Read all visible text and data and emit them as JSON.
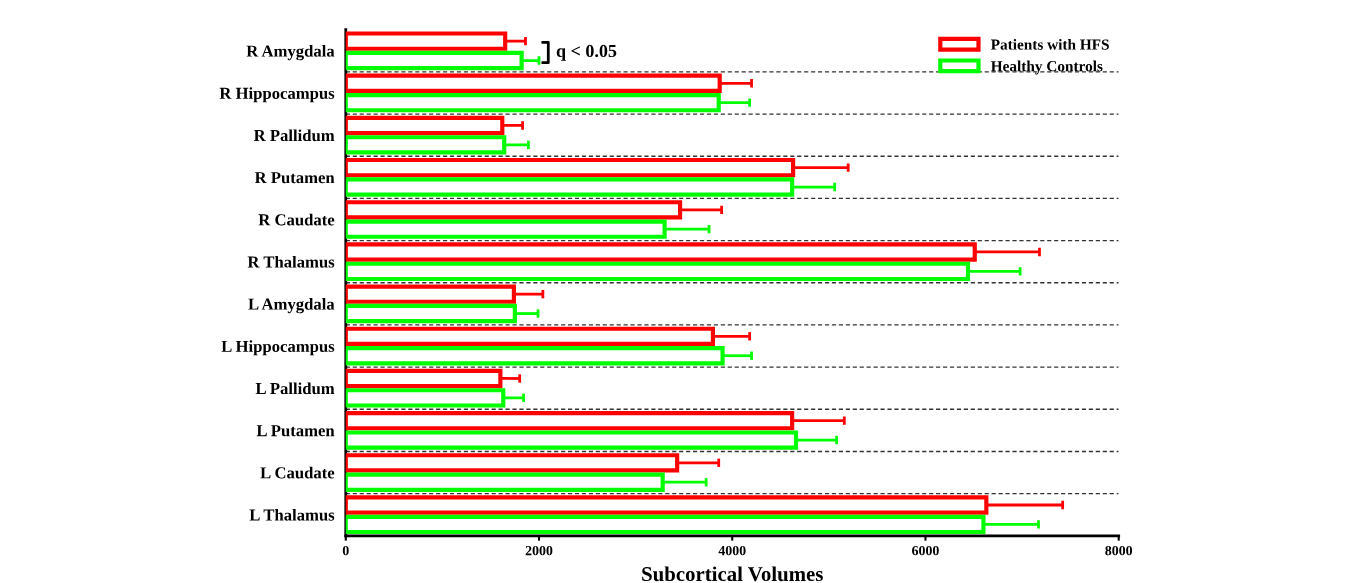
{
  "chart_data": {
    "type": "bar",
    "orientation": "horizontal",
    "xlabel": "Subcortical Volumes",
    "categories": [
      "R Amygdala",
      "R Hippocampus",
      "R Pallidum",
      "R Putamen",
      "R Caudate",
      "R Thalamus",
      "L Amygdala",
      "L Hippocampus",
      "L Pallidum",
      "L Putamen",
      "L Caudate",
      "L Thalamus"
    ],
    "series": [
      {
        "name": "Patients with HFS",
        "color": "#ff0000",
        "values": [
          1650,
          3870,
          1620,
          4630,
          3460,
          6510,
          1740,
          3800,
          1600,
          4620,
          3430,
          6630
        ],
        "errors": [
          [
            1650,
            1860
          ],
          [
            3870,
            4200
          ],
          [
            1620,
            1830
          ],
          [
            4630,
            5200
          ],
          [
            3460,
            3890
          ],
          [
            6510,
            7180
          ],
          [
            1740,
            2040
          ],
          [
            3800,
            4180
          ],
          [
            1600,
            1800
          ],
          [
            4620,
            5160
          ],
          [
            3430,
            3860
          ],
          [
            6630,
            7420
          ]
        ]
      },
      {
        "name": "Healthy Controls",
        "color": "#00ff00",
        "values": [
          1820,
          3860,
          1640,
          4620,
          3300,
          6440,
          1750,
          3900,
          1630,
          4660,
          3280,
          6600
        ],
        "errors": [
          [
            1820,
            2000
          ],
          [
            3860,
            4180
          ],
          [
            1640,
            1890
          ],
          [
            4620,
            5060
          ],
          [
            3300,
            3760
          ],
          [
            6440,
            6980
          ],
          [
            1750,
            1990
          ],
          [
            3900,
            4200
          ],
          [
            1630,
            1840
          ],
          [
            4660,
            5080
          ],
          [
            3280,
            3730
          ],
          [
            6600,
            7170
          ]
        ]
      }
    ],
    "xlim": [
      0,
      8000
    ],
    "xticks": [
      0,
      2000,
      4000,
      6000,
      8000
    ],
    "grid": "y",
    "legend": "top right",
    "annotations": [
      "q < 0.05"
    ]
  }
}
